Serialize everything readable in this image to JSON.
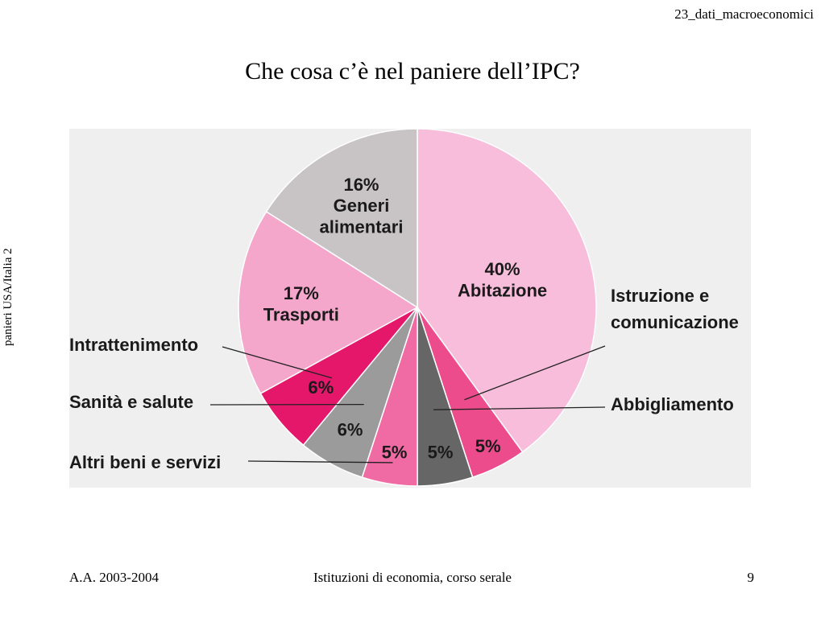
{
  "header": {
    "file_label": "23_dati_macroeconomici"
  },
  "side_label": "panieri USA/Italia 2",
  "chart_data": {
    "type": "pie",
    "title": "Che cosa c’è nel paniere dell’IPC?",
    "slices": [
      {
        "name": "Abitazione",
        "value": 40,
        "label_lines": [
          "40%",
          "Abitazione"
        ],
        "color": "#f8bddb"
      },
      {
        "name": "Istruzione e comunicazione",
        "value": 5,
        "label_lines": [
          "5%"
        ],
        "color": "#ec4c8c"
      },
      {
        "name": "Abbigliamento",
        "value": 5,
        "label_lines": [
          "5%"
        ],
        "color": "#666666"
      },
      {
        "name": "Altri beni e servizi",
        "value": 5,
        "label_lines": [
          "5%"
        ],
        "color": "#f06aa4"
      },
      {
        "name": "Sanità e salute",
        "value": 6,
        "label_lines": [
          "6%"
        ],
        "color": "#9b9b9b"
      },
      {
        "name": "Intrattenimento",
        "value": 6,
        "label_lines": [
          "6%"
        ],
        "color": "#e5176a"
      },
      {
        "name": "Trasporti",
        "value": 17,
        "label_lines": [
          "17%",
          "Trasporti"
        ],
        "color": "#f5a6cb"
      },
      {
        "name": "Generi alimentari",
        "value": 16,
        "label_lines": [
          "16%",
          "Generi",
          "alimentari"
        ],
        "color": "#c8c4c5"
      }
    ],
    "callouts": [
      {
        "slice": "Istruzione e comunicazione",
        "text_lines": [
          "Istruzione e",
          "comunicazione"
        ],
        "side": "right"
      },
      {
        "slice": "Abbigliamento",
        "text_lines": [
          "Abbigliamento"
        ],
        "side": "right"
      },
      {
        "slice": "Intrattenimento",
        "text_lines": [
          "Intrattenimento"
        ],
        "side": "left"
      },
      {
        "slice": "Sanità e salute",
        "text_lines": [
          "Sanità e salute"
        ],
        "side": "left"
      },
      {
        "slice": "Altri beni e servizi",
        "text_lines": [
          "Altri beni e servizi"
        ],
        "side": "left"
      }
    ]
  },
  "footer": {
    "left": "A.A. 2003-2004",
    "center": "Istituzioni di economia, corso serale",
    "page_number": "9"
  }
}
